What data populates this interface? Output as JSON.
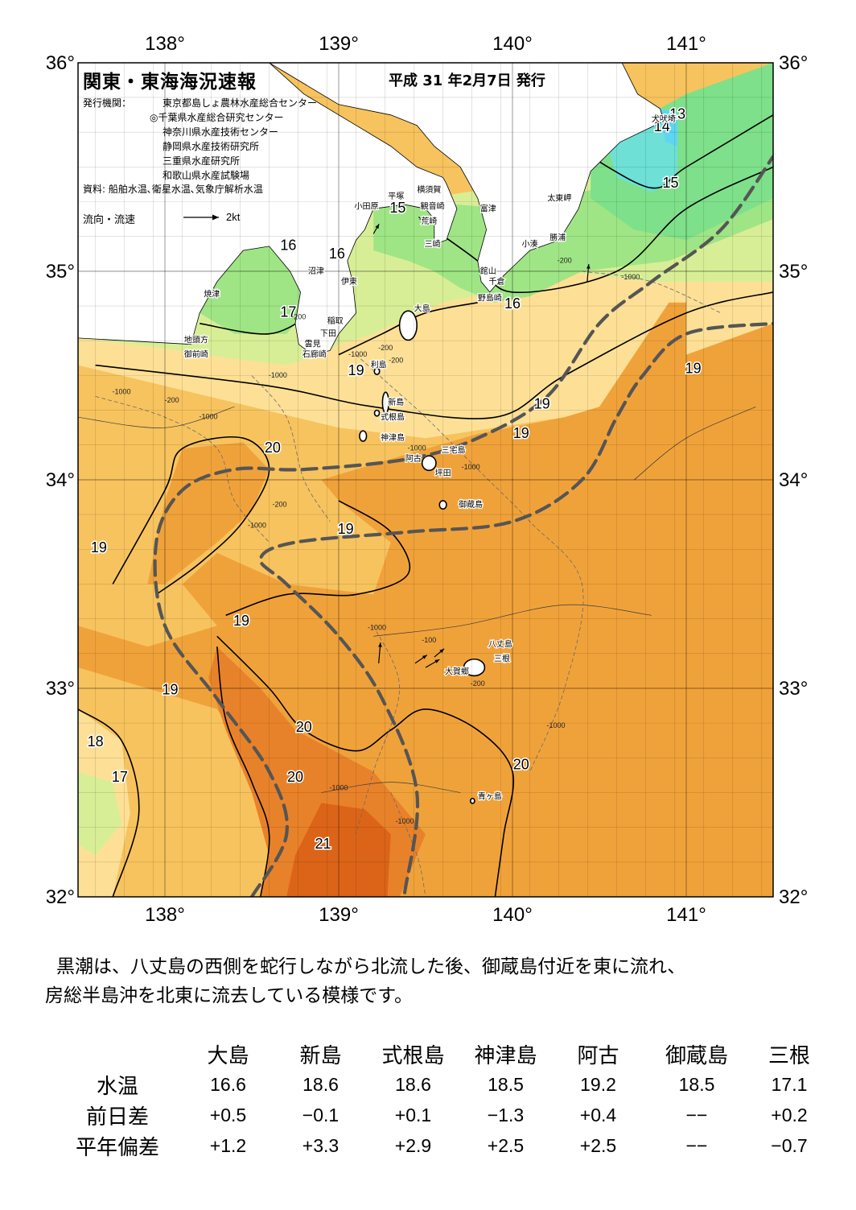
{
  "header": {
    "title": "関東・東海海況速報",
    "date": "平成 31 年2月7日 発行"
  },
  "issuers": {
    "label": "発行機関：",
    "list": [
      "東京都島しょ農林水産総合センター",
      "◎千葉県水産総合研究センター",
      "神奈川県水産技術センター",
      "静岡県水産技術研究所",
      "三重県水産研究所",
      "和歌山県水産試験場"
    ],
    "source": "資料: 船舶水温､衛星水温､気象庁解析水温"
  },
  "legend": {
    "label": "流向・流速",
    "unit": "2kt"
  },
  "axes": {
    "lon_top": [
      "138°",
      "139°",
      "140°",
      "141°"
    ],
    "lon_bottom": [
      "138°",
      "139°",
      "140°",
      "141°"
    ],
    "lat_left": [
      "36°",
      "35°",
      "34°",
      "33°",
      "32°"
    ],
    "lat_right": [
      "36°",
      "35°",
      "34°",
      "33°",
      "32°"
    ]
  },
  "map": {
    "extent": {
      "lon": [
        137.5,
        141.5
      ],
      "lat": [
        32,
        36
      ]
    },
    "colors": {
      "t13": "#5fd6f0",
      "t14": "#6ee0d6",
      "t15": "#7ee08a",
      "t16": "#9fe585",
      "t17": "#d8ee96",
      "t18": "#fde096",
      "t19": "#f7c35e",
      "t20": "#f0a23a",
      "t21": "#e8822a",
      "t22": "#dc6418",
      "land": "#ffffff",
      "kuroshio": "#555555"
    },
    "place_labels": [
      {
        "text": "犬吠埼",
        "lon": 140.87,
        "lat": 35.73
      },
      {
        "text": "太東岬",
        "lon": 140.27,
        "lat": 35.35
      },
      {
        "text": "勝浦",
        "lon": 140.26,
        "lat": 35.16
      },
      {
        "text": "小湊",
        "lon": 140.1,
        "lat": 35.13
      },
      {
        "text": "富津",
        "lon": 139.86,
        "lat": 35.3
      },
      {
        "text": "館山",
        "lon": 139.86,
        "lat": 35.0
      },
      {
        "text": "千倉",
        "lon": 139.91,
        "lat": 34.95
      },
      {
        "text": "野島崎",
        "lon": 139.87,
        "lat": 34.87
      },
      {
        "text": "平塚",
        "lon": 139.33,
        "lat": 35.36
      },
      {
        "text": "横須賀",
        "lon": 139.52,
        "lat": 35.39
      },
      {
        "text": "観音崎",
        "lon": 139.54,
        "lat": 35.31
      },
      {
        "text": "荒崎",
        "lon": 139.52,
        "lat": 35.24
      },
      {
        "text": "三崎",
        "lon": 139.54,
        "lat": 35.13
      },
      {
        "text": "小田原",
        "lon": 139.16,
        "lat": 35.31
      },
      {
        "text": "沼津",
        "lon": 138.87,
        "lat": 35.0
      },
      {
        "text": "伊東",
        "lon": 139.06,
        "lat": 34.95
      },
      {
        "text": "焼津",
        "lon": 138.27,
        "lat": 34.89
      },
      {
        "text": "稲取",
        "lon": 138.98,
        "lat": 34.76
      },
      {
        "text": "下田",
        "lon": 138.94,
        "lat": 34.7
      },
      {
        "text": "雲見",
        "lon": 138.85,
        "lat": 34.65
      },
      {
        "text": "石廊崎",
        "lon": 138.86,
        "lat": 34.6
      },
      {
        "text": "地頭方",
        "lon": 138.18,
        "lat": 34.67
      },
      {
        "text": "御前崎",
        "lon": 138.18,
        "lat": 34.6
      },
      {
        "text": "大島",
        "lon": 139.48,
        "lat": 34.82
      },
      {
        "text": "利島",
        "lon": 139.23,
        "lat": 34.55
      },
      {
        "text": "新島",
        "lon": 139.33,
        "lat": 34.37
      },
      {
        "text": "式根島",
        "lon": 139.31,
        "lat": 34.3
      },
      {
        "text": "神津島",
        "lon": 139.31,
        "lat": 34.2
      },
      {
        "text": "三宅島",
        "lon": 139.66,
        "lat": 34.14
      },
      {
        "text": "阿古",
        "lon": 139.43,
        "lat": 34.1
      },
      {
        "text": "坪田",
        "lon": 139.6,
        "lat": 34.03
      },
      {
        "text": "御蔵島",
        "lon": 139.76,
        "lat": 33.88
      },
      {
        "text": "八丈島",
        "lon": 139.93,
        "lat": 33.21
      },
      {
        "text": "三根",
        "lon": 139.94,
        "lat": 33.14
      },
      {
        "text": "大賀郷",
        "lon": 139.68,
        "lat": 33.08
      },
      {
        "text": "青ヶ島",
        "lon": 139.87,
        "lat": 32.48
      }
    ],
    "isotherm_labels": [
      {
        "text": "13",
        "lon": 140.95,
        "lat": 35.75
      },
      {
        "text": "14",
        "lon": 140.86,
        "lat": 35.69
      },
      {
        "text": "15",
        "lon": 140.91,
        "lat": 35.42
      },
      {
        "text": "15",
        "lon": 139.34,
        "lat": 35.3
      },
      {
        "text": "16",
        "lon": 138.71,
        "lat": 35.12
      },
      {
        "text": "16",
        "lon": 138.99,
        "lat": 35.08
      },
      {
        "text": "16",
        "lon": 140.0,
        "lat": 34.84
      },
      {
        "text": "17",
        "lon": 138.71,
        "lat": 34.8
      },
      {
        "text": "19",
        "lon": 139.1,
        "lat": 34.52
      },
      {
        "text": "19",
        "lon": 141.04,
        "lat": 34.53
      },
      {
        "text": "19",
        "lon": 140.17,
        "lat": 34.36
      },
      {
        "text": "19",
        "lon": 140.05,
        "lat": 34.22
      },
      {
        "text": "20",
        "lon": 138.62,
        "lat": 34.15
      },
      {
        "text": "19",
        "lon": 137.62,
        "lat": 33.67
      },
      {
        "text": "19",
        "lon": 139.04,
        "lat": 33.76
      },
      {
        "text": "19",
        "lon": 138.44,
        "lat": 33.32
      },
      {
        "text": "19",
        "lon": 138.03,
        "lat": 32.99
      },
      {
        "text": "20",
        "lon": 138.8,
        "lat": 32.81
      },
      {
        "text": "18",
        "lon": 137.6,
        "lat": 32.74
      },
      {
        "text": "17",
        "lon": 137.74,
        "lat": 32.57
      },
      {
        "text": "20",
        "lon": 138.75,
        "lat": 32.57
      },
      {
        "text": "20",
        "lon": 140.05,
        "lat": 32.63
      },
      {
        "text": "21",
        "lon": 138.91,
        "lat": 32.25
      }
    ],
    "depth_labels": [
      {
        "text": "-200",
        "lon": 140.3,
        "lat": 35.05
      },
      {
        "text": "-1000",
        "lon": 140.68,
        "lat": 34.97
      },
      {
        "text": "-200",
        "lon": 138.77,
        "lat": 34.78
      },
      {
        "text": "-200",
        "lon": 139.27,
        "lat": 34.63
      },
      {
        "text": "-1000",
        "lon": 139.11,
        "lat": 34.6
      },
      {
        "text": "-200",
        "lon": 139.33,
        "lat": 34.57
      },
      {
        "text": "-1000",
        "lon": 138.65,
        "lat": 34.5
      },
      {
        "text": "-1000",
        "lon": 137.75,
        "lat": 34.42
      },
      {
        "text": "-200",
        "lon": 138.04,
        "lat": 34.38
      },
      {
        "text": "-1000",
        "lon": 138.25,
        "lat": 34.3
      },
      {
        "text": "-1000",
        "lon": 139.45,
        "lat": 34.15
      },
      {
        "text": "-1000",
        "lon": 139.76,
        "lat": 34.06
      },
      {
        "text": "-200",
        "lon": 138.66,
        "lat": 33.88
      },
      {
        "text": "-1000",
        "lon": 138.53,
        "lat": 33.78
      },
      {
        "text": "-1000",
        "lon": 139.22,
        "lat": 33.29
      },
      {
        "text": "-100",
        "lon": 139.52,
        "lat": 33.23
      },
      {
        "text": "-200",
        "lon": 139.8,
        "lat": 33.02
      },
      {
        "text": "-1000",
        "lon": 140.25,
        "lat": 32.82
      },
      {
        "text": "-1000",
        "lon": 139.0,
        "lat": 32.52
      },
      {
        "text": "-1000",
        "lon": 139.38,
        "lat": 32.36
      }
    ],
    "current_arrows": [
      {
        "lon": 139.2,
        "lat": 35.18,
        "dir": 60,
        "len": 0.35
      },
      {
        "lon": 139.46,
        "lat": 35.26,
        "dir": -30,
        "len": 0.2
      },
      {
        "lon": 140.43,
        "lat": 34.95,
        "dir": 85,
        "len": 0.55
      },
      {
        "lon": 139.23,
        "lat": 33.12,
        "dir": 85,
        "len": 0.65
      },
      {
        "lon": 139.55,
        "lat": 33.15,
        "dir": 40,
        "len": 0.4
      },
      {
        "lon": 139.5,
        "lat": 33.1,
        "dir": 30,
        "len": 0.5
      },
      {
        "lon": 139.44,
        "lat": 33.12,
        "dir": 35,
        "len": 0.45
      }
    ]
  },
  "summary": {
    "line1": "黒潮は、八丈島の西側を蛇行しながら北流した後、御蔵島付近を東に流れ、",
    "line2": "房総半島沖を北東に流去している模様です。"
  },
  "table": {
    "columns": [
      "大島",
      "新島",
      "式根島",
      "神津島",
      "阿古",
      "御蔵島",
      "三根"
    ],
    "rows": [
      {
        "label": "水温",
        "values": [
          "16.6",
          "18.6",
          "18.6",
          "18.5",
          "19.2",
          "18.5",
          "17.1"
        ]
      },
      {
        "label": "前日差",
        "values": [
          "+0.5",
          "−0.1",
          "+0.1",
          "−1.3",
          "+0.4",
          "−−",
          "+0.2"
        ]
      },
      {
        "label": "平年偏差",
        "values": [
          "+1.2",
          "+3.3",
          "+2.9",
          "+2.5",
          "+2.5",
          "−−",
          "−0.7"
        ]
      }
    ]
  }
}
